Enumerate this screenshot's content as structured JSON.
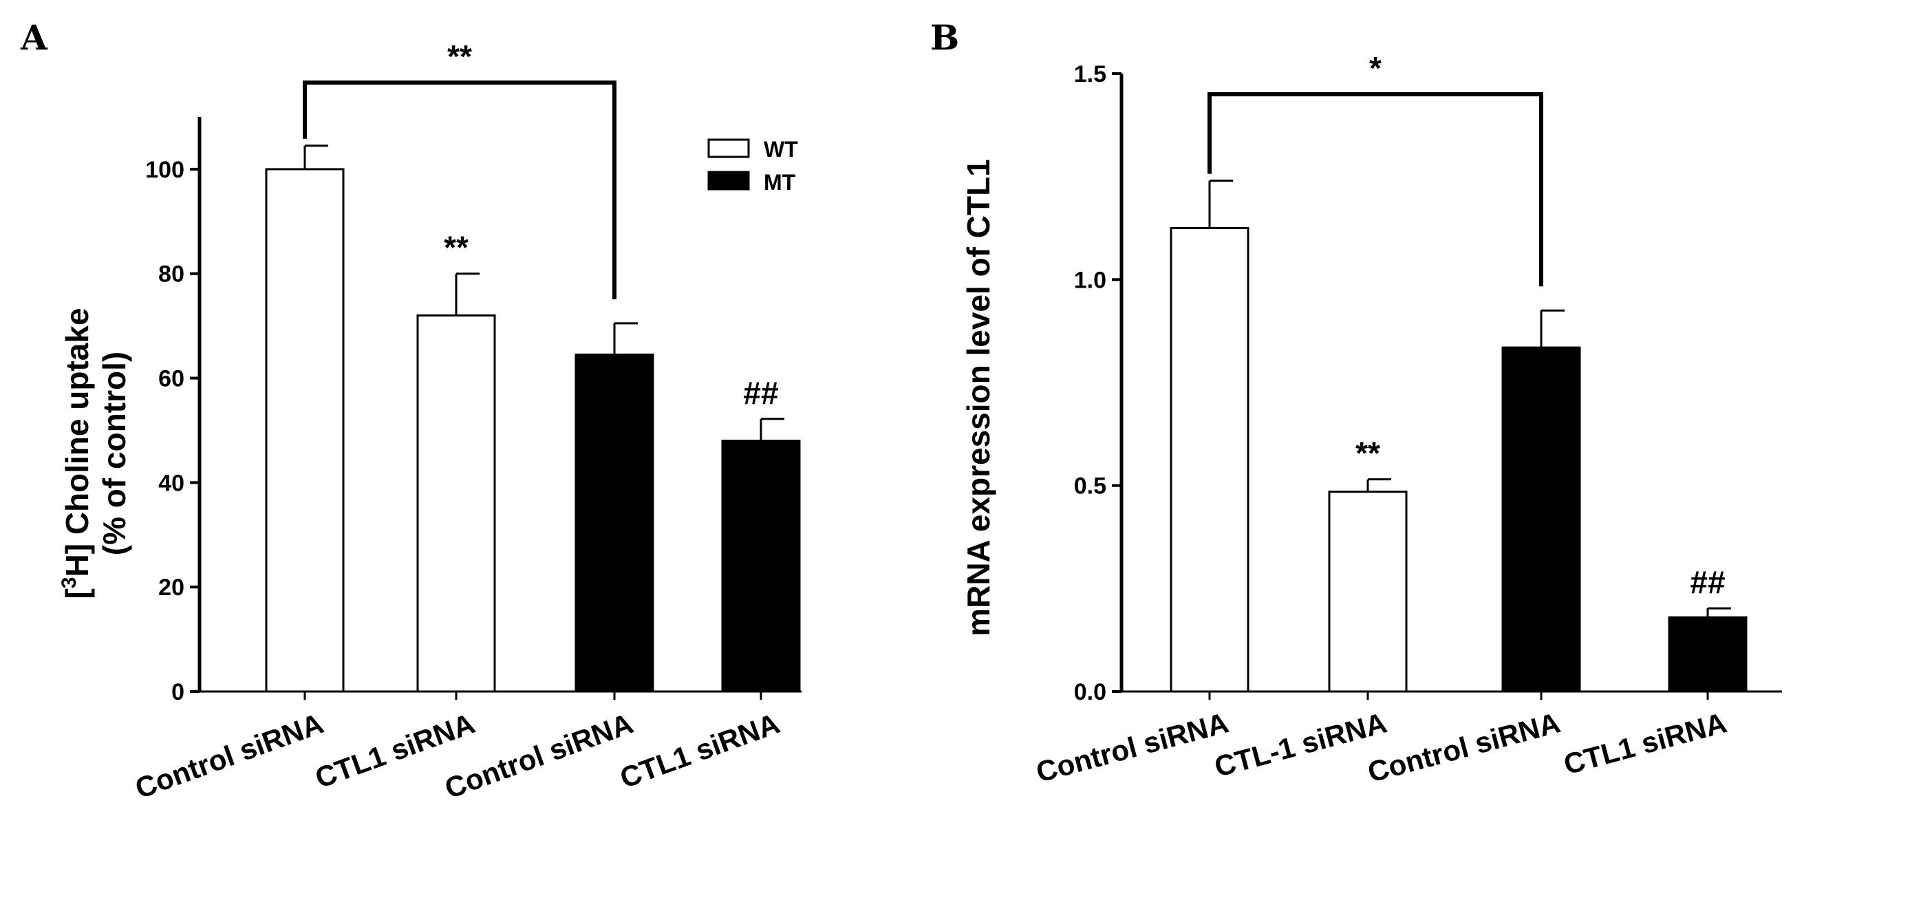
{
  "chart_data": [
    {
      "panel": "A",
      "type": "bar",
      "ylabel_sup_prefix": "[",
      "ylabel_sup": "3",
      "ylabel_main": "H] Choline uptake",
      "ylabel_line2": "(% of control)",
      "ylim": [
        0,
        110
      ],
      "yticks": [
        0,
        20,
        40,
        60,
        80,
        100
      ],
      "categories": [
        "Control siRNA",
        "CTL1 siRNA",
        "Control siRNA",
        "CTL1 siRNA"
      ],
      "groups": [
        "WT",
        "WT",
        "MT",
        "MT"
      ],
      "values": [
        100,
        72,
        64.5,
        48
      ],
      "errors": [
        4.5,
        8,
        6,
        4.2
      ],
      "annotations": [
        "",
        "**",
        "",
        "##"
      ],
      "bracket": {
        "from": 0,
        "to": 2,
        "label": "**"
      },
      "legend": [
        {
          "label": "WT",
          "color": "#ffffff"
        },
        {
          "label": "MT",
          "color": "#000000"
        }
      ]
    },
    {
      "panel": "B",
      "type": "bar",
      "ylabel": "mRNA expression level of CTL1",
      "ylim": [
        0,
        1.5
      ],
      "yticks": [
        "0.0",
        "0.5",
        "1.0",
        "1.5"
      ],
      "categories": [
        "Control siRNA",
        "CTL-1 siRNA",
        "Control siRNA",
        "CTL1 siRNA"
      ],
      "groups": [
        "WT",
        "WT",
        "MT",
        "MT"
      ],
      "values": [
        1.125,
        0.485,
        0.835,
        0.18
      ],
      "errors": [
        0.115,
        0.03,
        0.09,
        0.022
      ],
      "annotations": [
        "",
        "**",
        "",
        "##"
      ],
      "bracket": {
        "from": 0,
        "to": 2,
        "label": "*"
      }
    }
  ],
  "colors": {
    "WT": "#ffffff",
    "MT": "#000000",
    "axis": "#000000"
  }
}
